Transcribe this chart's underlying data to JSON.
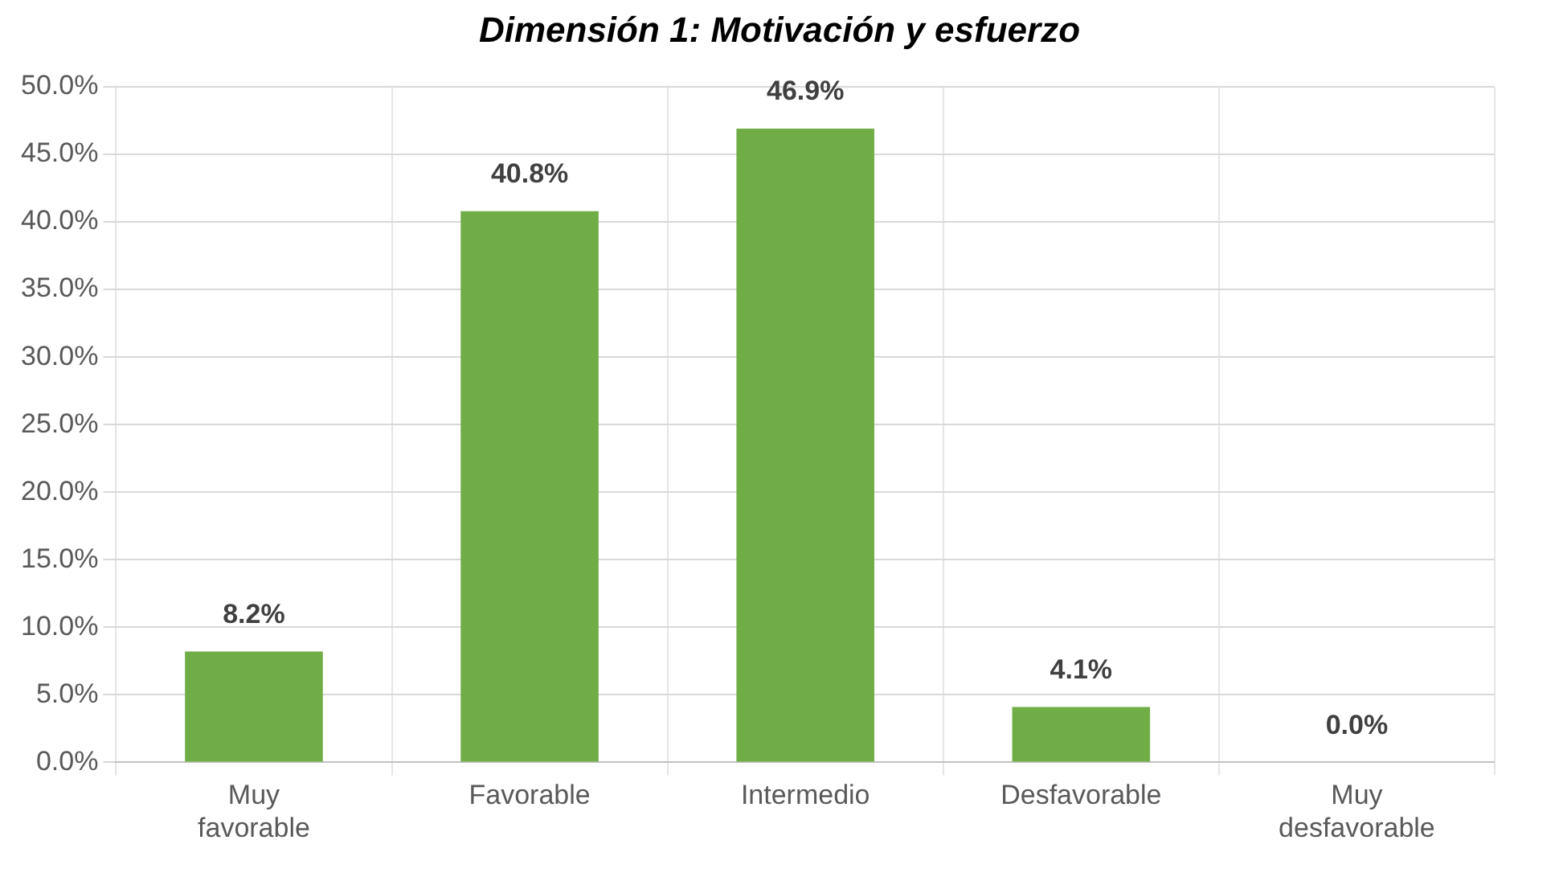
{
  "chart_data": {
    "type": "bar",
    "title": "Dimensión 1: Motivación y esfuerzo",
    "categories": [
      "Muy favorable",
      "Favorable",
      "Intermedio",
      "Desfavorable",
      "Muy desfavorable"
    ],
    "values": [
      8.2,
      40.8,
      46.9,
      4.1,
      0.0
    ],
    "value_labels": [
      "8.2%",
      "40.8%",
      "46.9%",
      "4.1%",
      "0.0%"
    ],
    "color": "#70ad47",
    "ylim": [
      0,
      50
    ],
    "yticks": [
      {
        "value": 0,
        "label": "0.0%"
      },
      {
        "value": 5,
        "label": "5.0%"
      },
      {
        "value": 10,
        "label": "10.0%"
      },
      {
        "value": 15,
        "label": "15.0%"
      },
      {
        "value": 20,
        "label": "20.0%"
      },
      {
        "value": 25,
        "label": "25.0%"
      },
      {
        "value": 30,
        "label": "30.0%"
      },
      {
        "value": 35,
        "label": "35.0%"
      },
      {
        "value": 40,
        "label": "40.0%"
      },
      {
        "value": 45,
        "label": "45.0%"
      },
      {
        "value": 50,
        "label": "50.0%"
      }
    ],
    "grid": true,
    "legend": false
  }
}
